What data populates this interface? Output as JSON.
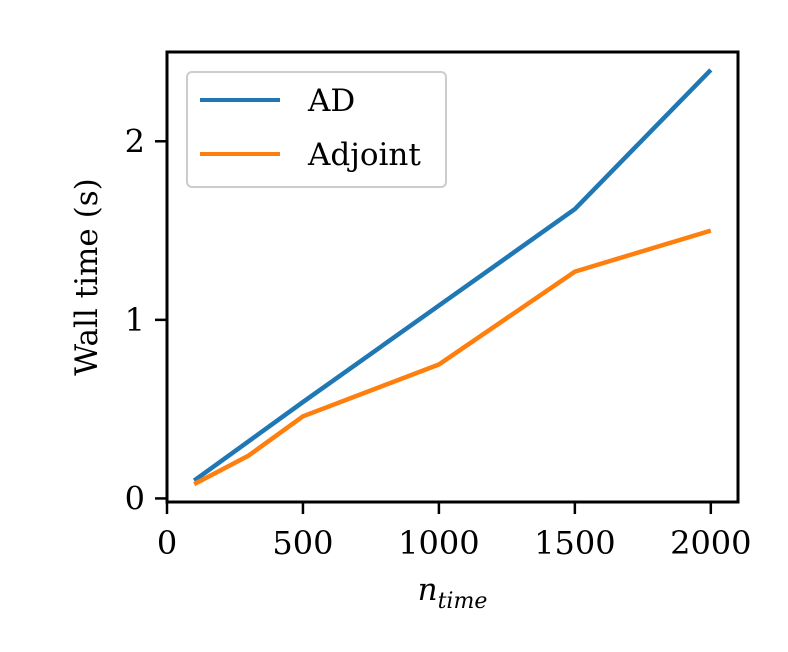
{
  "chart_data": {
    "type": "line",
    "title": "",
    "xlabel": "n",
    "xlabel_subscript": "time",
    "ylabel": "Wall time (s)",
    "xlim": [
      0,
      2100
    ],
    "ylim": [
      -0.02,
      2.5
    ],
    "xticks": [
      0,
      500,
      1000,
      1500,
      2000
    ],
    "xtick_labels": [
      "0",
      "500",
      "1000",
      "1500",
      "2000"
    ],
    "yticks": [
      0,
      1,
      2
    ],
    "ytick_labels": [
      "0",
      "1",
      "2"
    ],
    "grid": false,
    "legend_position": "upper-left",
    "series": [
      {
        "name": "AD",
        "color": "#1f77b4",
        "x": [
          100,
          300,
          500,
          1000,
          1500,
          2000
        ],
        "y": [
          0.1,
          0.32,
          0.54,
          1.08,
          1.62,
          2.4
        ]
      },
      {
        "name": "Adjoint",
        "color": "#ff7f0e",
        "x": [
          100,
          300,
          500,
          1000,
          1500,
          2000
        ],
        "y": [
          0.08,
          0.24,
          0.46,
          0.75,
          1.27,
          1.5
        ]
      }
    ]
  }
}
